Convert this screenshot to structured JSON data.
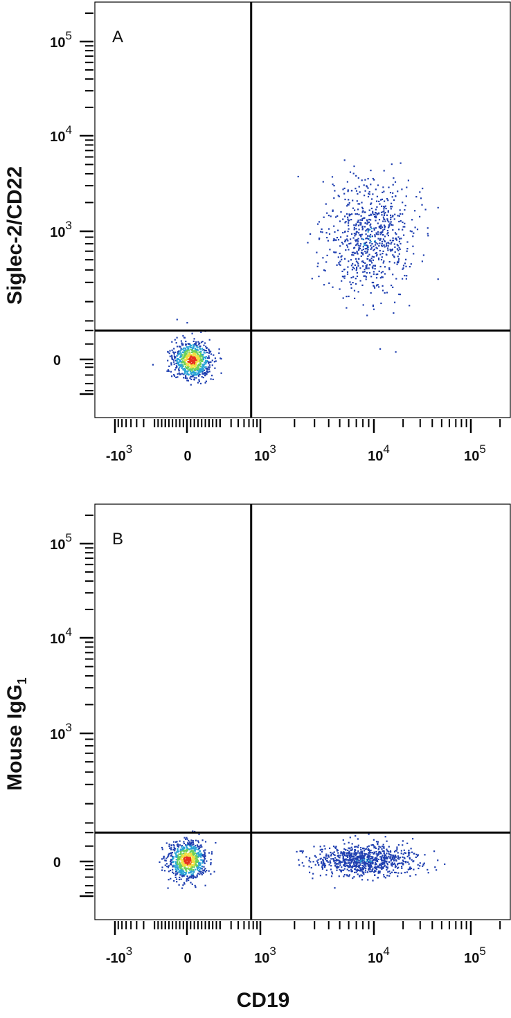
{
  "figure": {
    "xlabel": "CD19",
    "panels_ylabels": [
      "Siglec-2/CD22",
      "Mouse IgG1"
    ]
  },
  "colors": {
    "density_low": "#1f3fb0",
    "density_mid_low": "#2aa3d6",
    "density_mid": "#6cd05a",
    "density_mid_high": "#f0e040",
    "density_high": "#e8321e",
    "gate_lines": "#000000",
    "axes": "#000000"
  },
  "chart_data": [
    {
      "type": "scatter",
      "title": "",
      "panel_label": "A",
      "xlabel": "CD19",
      "ylabel": "Siglec-2/CD22",
      "x_scale": "biexponential",
      "y_scale": "biexponential",
      "xlim": [
        -2000,
        200000
      ],
      "ylim": [
        -2000,
        250000
      ],
      "x_ticks": [
        "-10³",
        "0",
        "10³",
        "10⁴",
        "10⁵"
      ],
      "y_ticks": [
        "10⁵",
        "10⁴",
        "10³",
        "0"
      ],
      "quadrant_gate": {
        "x": 750,
        "y": 150
      },
      "style": "pseudocolor density dot plot",
      "populations": [
        {
          "name": "",
          "x_center": 40,
          "y_center": 0,
          "density": "high",
          "count_approx": 3000
        },
        {
          "name": "",
          "x_center": 9000,
          "y_center": 900,
          "density": "low",
          "count_approx": 1100
        }
      ]
    },
    {
      "type": "scatter",
      "title": "",
      "panel_label": "B",
      "xlabel": "CD19",
      "ylabel": "Mouse IgG1",
      "x_scale": "biexponential",
      "y_scale": "biexponential",
      "xlim": [
        -2000,
        200000
      ],
      "ylim": [
        -2000,
        250000
      ],
      "x_ticks": [
        "-10³",
        "0",
        "10³",
        "10⁴",
        "10⁵"
      ],
      "y_ticks": [
        "10⁵",
        "10⁴",
        "10³",
        "0"
      ],
      "quadrant_gate": {
        "x": 750,
        "y": 150
      },
      "style": "pseudocolor density dot plot",
      "populations": [
        {
          "name": "",
          "x_center": 0,
          "y_center": 10,
          "density": "high",
          "count_approx": 3000
        },
        {
          "name": "",
          "x_center": 8000,
          "y_center": 10,
          "density": "medium",
          "count_approx": 1300
        }
      ]
    }
  ]
}
